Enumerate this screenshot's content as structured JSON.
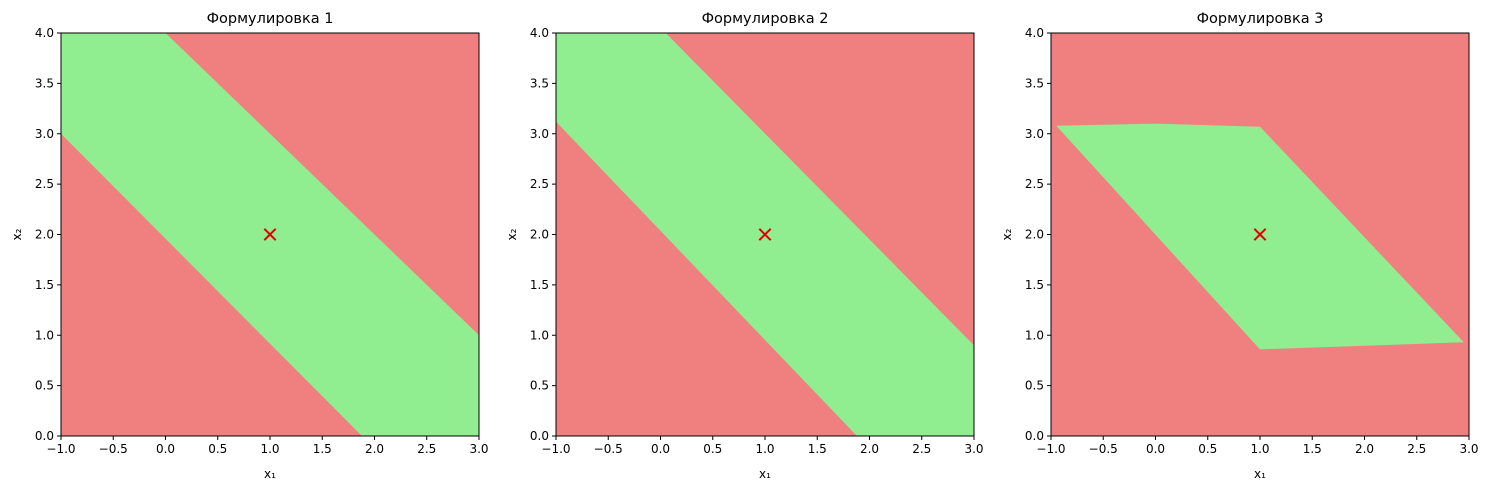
{
  "colors": {
    "feasible": "#90ee90",
    "infeasible": "#f08080",
    "marker": "#e00000"
  },
  "chart_data": [
    {
      "type": "region",
      "title": "Формулировка 1",
      "xlabel": "x₁",
      "ylabel": "x₂",
      "xlim": [
        -1.0,
        3.0
      ],
      "ylim": [
        0.0,
        4.0
      ],
      "xticks": [
        "−1.0",
        "−0.5",
        "0.0",
        "0.5",
        "1.0",
        "1.5",
        "2.0",
        "2.5",
        "3.0"
      ],
      "yticks": [
        "0.0",
        "0.5",
        "1.0",
        "1.5",
        "2.0",
        "2.5",
        "3.0",
        "3.5",
        "4.0"
      ],
      "grid": false,
      "feasible_region": [
        [
          -1.0,
          3.0
        ],
        [
          -1.0,
          4.0
        ],
        [
          0.0,
          4.0
        ],
        [
          3.0,
          1.0
        ],
        [
          3.0,
          0.0
        ],
        [
          1.88,
          0.0
        ]
      ],
      "marker": {
        "x": 1.0,
        "y": 2.0,
        "symbol": "x"
      }
    },
    {
      "type": "region",
      "title": "Формулировка 2",
      "xlabel": "x₁",
      "ylabel": "x₂",
      "xlim": [
        -1.0,
        3.0
      ],
      "ylim": [
        0.0,
        4.0
      ],
      "xticks": [
        "−1.0",
        "−0.5",
        "0.0",
        "0.5",
        "1.0",
        "1.5",
        "2.0",
        "2.5",
        "3.0"
      ],
      "yticks": [
        "0.0",
        "0.5",
        "1.0",
        "1.5",
        "2.0",
        "2.5",
        "3.0",
        "3.5",
        "4.0"
      ],
      "grid": false,
      "feasible_region": [
        [
          -1.0,
          3.12
        ],
        [
          -1.0,
          4.0
        ],
        [
          0.05,
          4.0
        ],
        [
          3.0,
          0.9
        ],
        [
          3.0,
          0.0
        ],
        [
          1.88,
          0.0
        ]
      ],
      "marker": {
        "x": 1.0,
        "y": 2.0,
        "symbol": "x"
      }
    },
    {
      "type": "region",
      "title": "Формулировка 3",
      "xlabel": "x₁",
      "ylabel": "x₂",
      "xlim": [
        -1.0,
        3.0
      ],
      "ylim": [
        0.0,
        4.0
      ],
      "xticks": [
        "−1.0",
        "−0.5",
        "0.0",
        "0.5",
        "1.0",
        "1.5",
        "2.0",
        "2.5",
        "3.0"
      ],
      "yticks": [
        "0.0",
        "0.5",
        "1.0",
        "1.5",
        "2.0",
        "2.5",
        "3.0",
        "3.5",
        "4.0"
      ],
      "grid": false,
      "feasible_region": [
        [
          -0.95,
          3.08
        ],
        [
          0.0,
          3.1
        ],
        [
          1.0,
          3.07
        ],
        [
          2.95,
          0.93
        ],
        [
          1.0,
          0.86
        ]
      ],
      "marker": {
        "x": 1.0,
        "y": 2.0,
        "symbol": "x"
      }
    }
  ]
}
